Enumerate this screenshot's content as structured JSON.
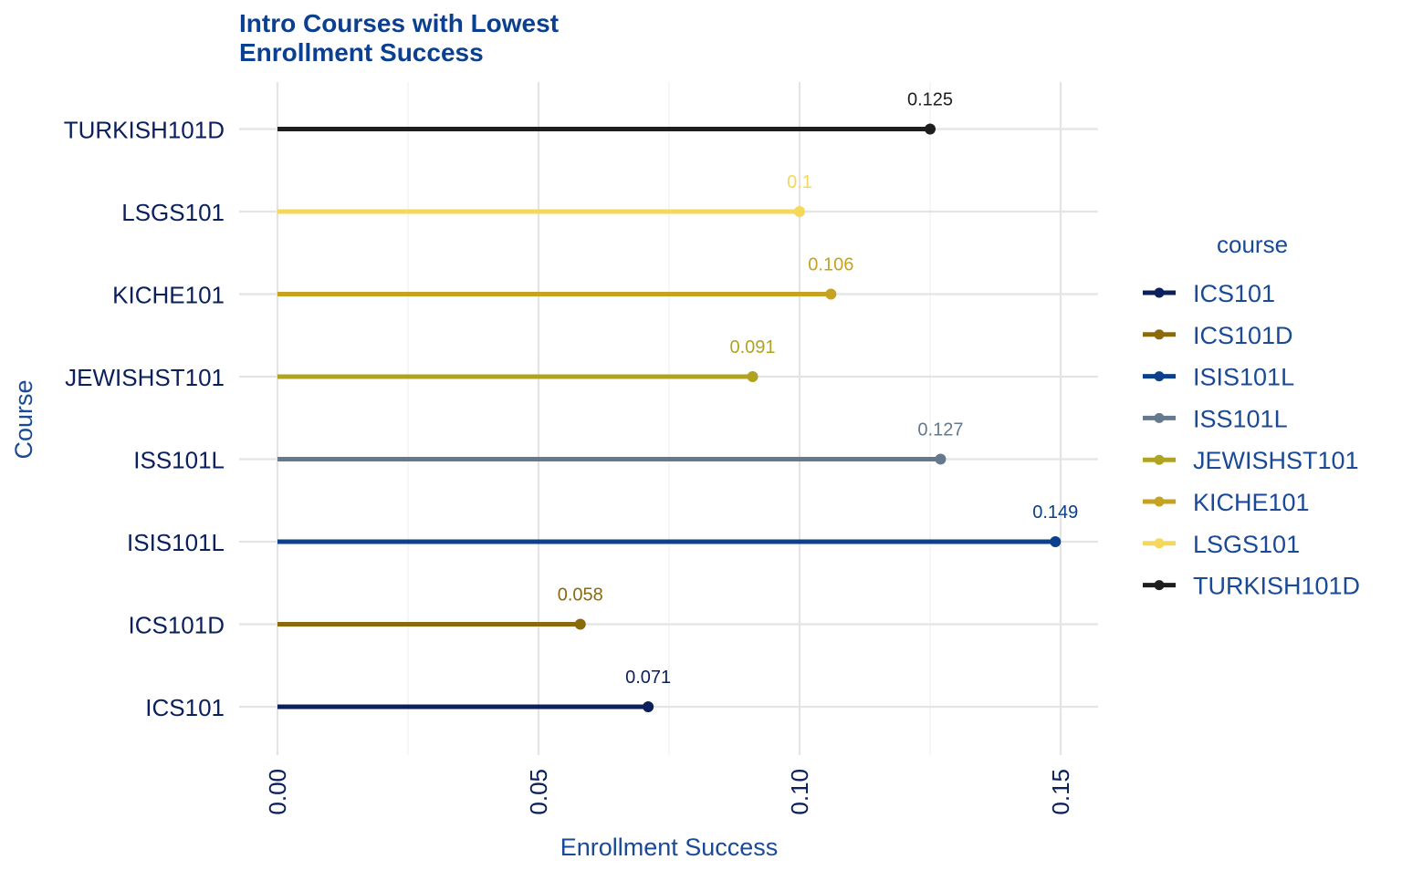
{
  "chart_data": {
    "type": "lollipop",
    "title": "Intro Courses with Lowest Enrollment Success",
    "title_lines": [
      "Intro Courses with Lowest",
      "Enrollment Success"
    ],
    "xlabel": "Enrollment Success",
    "ylabel": "Course",
    "xlim": [
      0,
      0.15
    ],
    "x_ticks": [
      0.0,
      0.05,
      0.1,
      0.15
    ],
    "x_tick_labels": [
      "0.00",
      "0.05",
      "0.10",
      "0.15"
    ],
    "grid": true,
    "legend_title": "course",
    "legend_position": "right",
    "series": [
      {
        "name": "ICS101",
        "value": 0.071,
        "label": "0.071",
        "color": "#0b1f5c"
      },
      {
        "name": "ICS101D",
        "value": 0.058,
        "label": "0.058",
        "color": "#8a6a0c"
      },
      {
        "name": "ISIS101L",
        "value": 0.149,
        "label": "0.149",
        "color": "#0c3f8c"
      },
      {
        "name": "ISS101L",
        "value": 0.127,
        "label": "0.127",
        "color": "#66788c"
      },
      {
        "name": "JEWISHST101",
        "value": 0.091,
        "label": "0.091",
        "color": "#b0a321"
      },
      {
        "name": "KICHE101",
        "value": 0.106,
        "label": "0.106",
        "color": "#c5a21f"
      },
      {
        "name": "LSGS101",
        "value": 0.1,
        "label": "0.1",
        "color": "#f5d85a"
      },
      {
        "name": "TURKISH101D",
        "value": 0.125,
        "label": "0.125",
        "color": "#1e1e1e"
      }
    ]
  }
}
